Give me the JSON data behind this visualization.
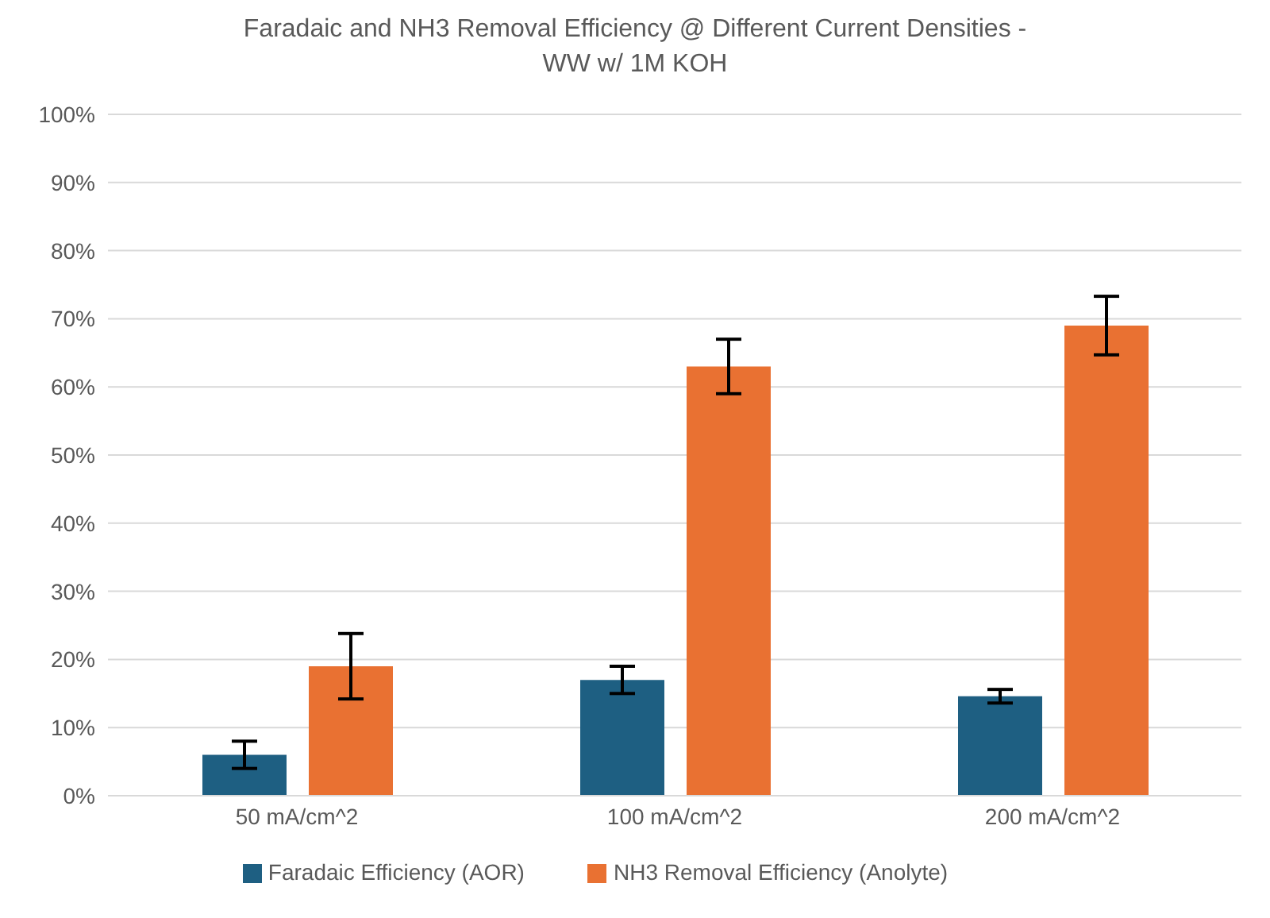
{
  "chart_data": {
    "type": "bar",
    "title": "Faradaic and NH3 Removal Efficiency @ Different Current Densities -",
    "subtitle": "WW w/ 1M KOH",
    "categories": [
      "50 mA/cm^2",
      "100 mA/cm^2",
      "200 mA/cm^2"
    ],
    "series": [
      {
        "name": "Faradaic Efficiency (AOR)",
        "color": "#1e5f82",
        "values": [
          6,
          17,
          14.6
        ],
        "errors": [
          2,
          2,
          1
        ]
      },
      {
        "name": "NH3 Removal Efficiency (Anolyte)",
        "color": "#e97132",
        "values": [
          19,
          63,
          69
        ],
        "errors": [
          4.8,
          4,
          4.3
        ]
      }
    ],
    "ylim": [
      0,
      100
    ],
    "yticks": [
      {
        "value": 0,
        "label": "0%"
      },
      {
        "value": 10,
        "label": "10%"
      },
      {
        "value": 20,
        "label": "20%"
      },
      {
        "value": 30,
        "label": "30%"
      },
      {
        "value": 40,
        "label": "40%"
      },
      {
        "value": 50,
        "label": "50%"
      },
      {
        "value": 60,
        "label": "60%"
      },
      {
        "value": 70,
        "label": "70%"
      },
      {
        "value": 80,
        "label": "80%"
      },
      {
        "value": 90,
        "label": "90%"
      },
      {
        "value": 100,
        "label": "100%"
      }
    ],
    "grid": "y",
    "legend": "bottom"
  }
}
